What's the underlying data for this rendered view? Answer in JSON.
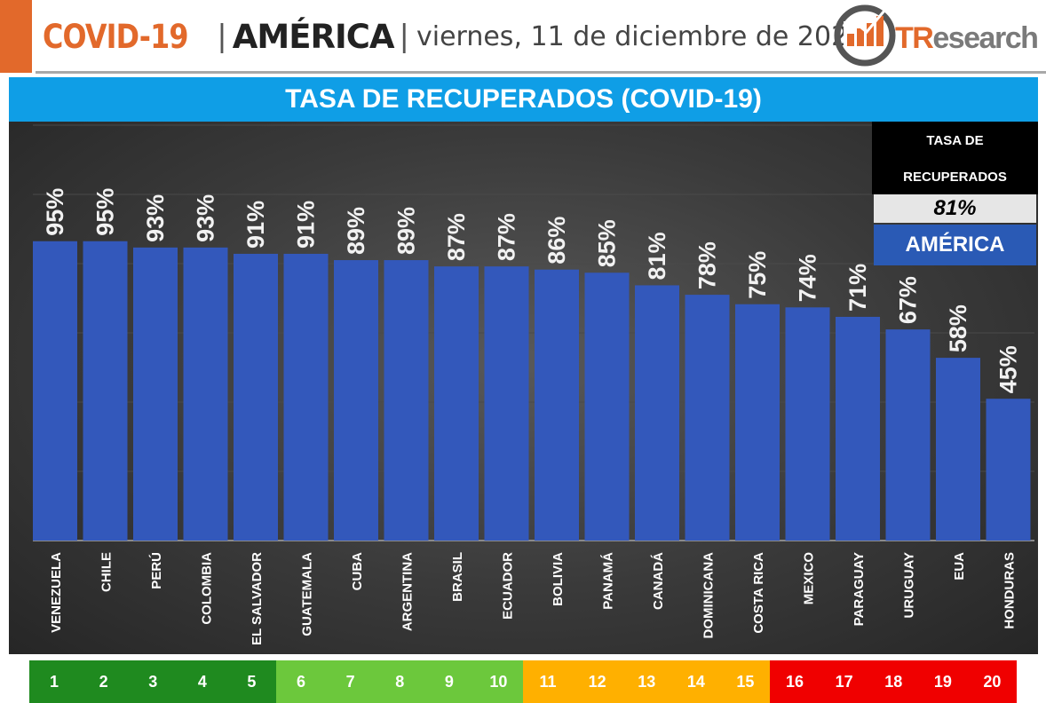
{
  "header": {
    "covid_label": "COVID-19",
    "separator": "|",
    "region": "AMÉRICA",
    "date": "viernes, 11 de diciembre de 2020",
    "logo_text_tr": "TR",
    "logo_text_rest": "esearch"
  },
  "title": "TASA DE RECUPERADOS (COVID-19)",
  "inset": {
    "line1": "TASA DE",
    "line2": "RECUPERADOS",
    "value": "81%",
    "region": "AMÉRICA"
  },
  "colors": {
    "accent": "#e2692b",
    "title_bar": "#0f9ee6",
    "bar": "#3358bb",
    "rank_dark_green": "#1f8a1f",
    "rank_light_green": "#6cc83c",
    "rank_orange": "#ffb000",
    "rank_red": "#f00000"
  },
  "chart_data": {
    "type": "bar",
    "categories": [
      "VENEZUELA",
      "CHILE",
      "PERÚ",
      "COLOMBIA",
      "EL SALVADOR",
      "GUATEMALA",
      "CUBA",
      "ARGENTINA",
      "BRASIL",
      "ECUADOR",
      "BOLIVIA",
      "PANAMÁ",
      "CANADÁ",
      "DOMINICANA",
      "COSTA RICA",
      "MEXICO",
      "PARAGUAY",
      "URUGUAY",
      "EUA",
      "HONDURAS"
    ],
    "values": [
      95,
      95,
      93,
      93,
      91,
      91,
      89,
      89,
      87,
      87,
      86,
      85,
      81,
      78,
      75,
      74,
      71,
      67,
      58,
      45
    ],
    "value_labels": [
      "95%",
      "95%",
      "93%",
      "93%",
      "91%",
      "91%",
      "89%",
      "89%",
      "87%",
      "87%",
      "86%",
      "85%",
      "81%",
      "78%",
      "75%",
      "74%",
      "71%",
      "67%",
      "58%",
      "45%"
    ],
    "ylim": [
      0,
      100
    ],
    "grid": true,
    "legend": "none"
  },
  "ranks": {
    "labels": [
      "1",
      "2",
      "3",
      "4",
      "5",
      "6",
      "7",
      "8",
      "9",
      "10",
      "11",
      "12",
      "13",
      "14",
      "15",
      "16",
      "17",
      "18",
      "19",
      "20"
    ],
    "groups": [
      "dark_green",
      "dark_green",
      "dark_green",
      "dark_green",
      "dark_green",
      "light_green",
      "light_green",
      "light_green",
      "light_green",
      "light_green",
      "orange",
      "orange",
      "orange",
      "orange",
      "orange",
      "red",
      "red",
      "red",
      "red",
      "red"
    ]
  }
}
